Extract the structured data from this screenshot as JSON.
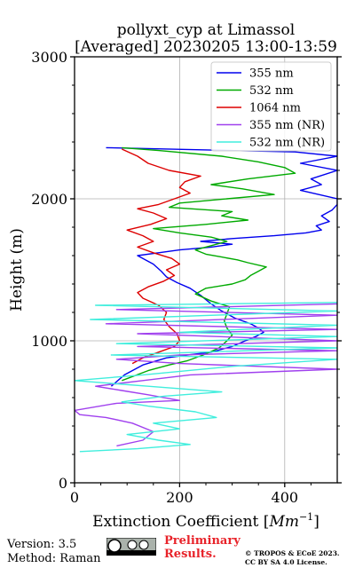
{
  "chart_data": {
    "type": "line",
    "title": "pollyxt_cyp at Limassol",
    "subtitle": "[Averaged] 20230205 13:00-13:59",
    "xlabel": "Extinction Coefficient",
    "xlabel_unit_base": "Mm",
    "xlabel_unit_exp": "−1",
    "ylabel": "Height (m)",
    "xlim": [
      0,
      500
    ],
    "ylim": [
      0,
      3000
    ],
    "xticks": [
      "0",
      "200",
      "400"
    ],
    "yticks": [
      "0",
      "1000",
      "2000",
      "3000"
    ],
    "grid": true,
    "legend_position": "top-right",
    "series": [
      {
        "name": "355 nm",
        "color": "#0000ee",
        "points": [
          [
            70,
            680
          ],
          [
            95,
            760
          ],
          [
            130,
            830
          ],
          [
            175,
            880
          ],
          [
            215,
            900
          ],
          [
            260,
            920
          ],
          [
            300,
            960
          ],
          [
            325,
            1000
          ],
          [
            345,
            1030
          ],
          [
            360,
            1060
          ],
          [
            350,
            1090
          ],
          [
            335,
            1120
          ],
          [
            305,
            1160
          ],
          [
            280,
            1210
          ],
          [
            260,
            1260
          ],
          [
            240,
            1320
          ],
          [
            220,
            1370
          ],
          [
            195,
            1410
          ],
          [
            175,
            1450
          ],
          [
            165,
            1490
          ],
          [
            150,
            1540
          ],
          [
            130,
            1580
          ],
          [
            120,
            1600
          ],
          [
            160,
            1620
          ],
          [
            200,
            1640
          ],
          [
            260,
            1660
          ],
          [
            300,
            1680
          ],
          [
            240,
            1700
          ],
          [
            300,
            1720
          ],
          [
            380,
            1740
          ],
          [
            440,
            1760
          ],
          [
            470,
            1780
          ],
          [
            460,
            1810
          ],
          [
            485,
            1840
          ],
          [
            470,
            1880
          ],
          [
            490,
            1920
          ],
          [
            500,
            1960
          ],
          [
            500,
            2000
          ],
          [
            430,
            2060
          ],
          [
            470,
            2100
          ],
          [
            450,
            2140
          ],
          [
            500,
            2200
          ],
          [
            430,
            2250
          ],
          [
            500,
            2300
          ],
          [
            420,
            2330
          ],
          [
            60,
            2360
          ]
        ]
      },
      {
        "name": "532 nm",
        "color": "#00aa00",
        "points": [
          [
            90,
            720
          ],
          [
            140,
            790
          ],
          [
            180,
            830
          ],
          [
            215,
            860
          ],
          [
            245,
            900
          ],
          [
            275,
            950
          ],
          [
            290,
            1000
          ],
          [
            300,
            1040
          ],
          [
            290,
            1090
          ],
          [
            285,
            1140
          ],
          [
            290,
            1190
          ],
          [
            295,
            1240
          ],
          [
            260,
            1280
          ],
          [
            230,
            1330
          ],
          [
            250,
            1370
          ],
          [
            300,
            1400
          ],
          [
            325,
            1430
          ],
          [
            335,
            1460
          ],
          [
            350,
            1490
          ],
          [
            365,
            1520
          ],
          [
            330,
            1550
          ],
          [
            310,
            1570
          ],
          [
            280,
            1590
          ],
          [
            250,
            1610
          ],
          [
            230,
            1640
          ],
          [
            260,
            1670
          ],
          [
            290,
            1700
          ],
          [
            260,
            1730
          ],
          [
            200,
            1760
          ],
          [
            150,
            1790
          ],
          [
            250,
            1820
          ],
          [
            330,
            1850
          ],
          [
            280,
            1880
          ],
          [
            300,
            1910
          ],
          [
            180,
            1940
          ],
          [
            200,
            1970
          ],
          [
            290,
            2000
          ],
          [
            380,
            2030
          ],
          [
            320,
            2070
          ],
          [
            260,
            2100
          ],
          [
            330,
            2140
          ],
          [
            420,
            2180
          ],
          [
            400,
            2220
          ],
          [
            350,
            2260
          ],
          [
            280,
            2300
          ],
          [
            160,
            2340
          ],
          [
            90,
            2360
          ]
        ]
      },
      {
        "name": "1064 nm",
        "color": "#dd0000",
        "points": [
          [
            110,
            840
          ],
          [
            130,
            880
          ],
          [
            160,
            920
          ],
          [
            190,
            960
          ],
          [
            200,
            1000
          ],
          [
            195,
            1050
          ],
          [
            180,
            1100
          ],
          [
            170,
            1150
          ],
          [
            175,
            1200
          ],
          [
            160,
            1250
          ],
          [
            130,
            1300
          ],
          [
            120,
            1340
          ],
          [
            140,
            1380
          ],
          [
            170,
            1420
          ],
          [
            190,
            1460
          ],
          [
            175,
            1500
          ],
          [
            200,
            1540
          ],
          [
            185,
            1580
          ],
          [
            150,
            1620
          ],
          [
            120,
            1660
          ],
          [
            150,
            1700
          ],
          [
            130,
            1740
          ],
          [
            100,
            1780
          ],
          [
            145,
            1820
          ],
          [
            175,
            1860
          ],
          [
            150,
            1900
          ],
          [
            120,
            1930
          ],
          [
            160,
            1960
          ],
          [
            190,
            2000
          ],
          [
            220,
            2040
          ],
          [
            200,
            2080
          ],
          [
            210,
            2120
          ],
          [
            240,
            2160
          ],
          [
            180,
            2200
          ],
          [
            140,
            2250
          ],
          [
            120,
            2300
          ],
          [
            90,
            2350
          ]
        ]
      },
      {
        "name": "355 nm (NR)",
        "color": "#a040ee",
        "points": [
          [
            80,
            260
          ],
          [
            130,
            300
          ],
          [
            150,
            360
          ],
          [
            110,
            420
          ],
          [
            60,
            460
          ],
          [
            10,
            480
          ],
          [
            0,
            510
          ],
          [
            80,
            560
          ],
          [
            200,
            580
          ],
          [
            140,
            620
          ],
          [
            90,
            650
          ],
          [
            40,
            680
          ],
          [
            130,
            720
          ],
          [
            220,
            760
          ],
          [
            500,
            800
          ],
          [
            200,
            840
          ],
          [
            80,
            870
          ],
          [
            200,
            900
          ],
          [
            500,
            930
          ],
          [
            120,
            960
          ],
          [
            500,
            1000
          ],
          [
            120,
            1050
          ],
          [
            500,
            1080
          ],
          [
            60,
            1120
          ],
          [
            500,
            1180
          ],
          [
            80,
            1220
          ],
          [
            500,
            1260
          ]
        ]
      },
      {
        "name": "532 nm (NR)",
        "color": "#40eedd",
        "points": [
          [
            10,
            220
          ],
          [
            120,
            240
          ],
          [
            220,
            270
          ],
          [
            160,
            300
          ],
          [
            100,
            340
          ],
          [
            200,
            380
          ],
          [
            150,
            420
          ],
          [
            270,
            460
          ],
          [
            230,
            500
          ],
          [
            140,
            540
          ],
          [
            90,
            570
          ],
          [
            170,
            610
          ],
          [
            280,
            640
          ],
          [
            140,
            680
          ],
          [
            0,
            720
          ],
          [
            130,
            760
          ],
          [
            300,
            820
          ],
          [
            500,
            870
          ],
          [
            70,
            900
          ],
          [
            500,
            950
          ],
          [
            80,
            980
          ],
          [
            500,
            1030
          ],
          [
            200,
            1060
          ],
          [
            500,
            1110
          ],
          [
            30,
            1150
          ],
          [
            500,
            1210
          ],
          [
            40,
            1250
          ],
          [
            500,
            1270
          ]
        ]
      }
    ],
    "footer": {
      "version": "Version: 3.5",
      "method": "Method: Raman",
      "preliminary_line1": "Preliminary",
      "preliminary_line2": "Results.",
      "copyright_line1": "© TROPOS & ECoE 2023.",
      "copyright_line2": "CC BY SA 4.0 License."
    }
  }
}
